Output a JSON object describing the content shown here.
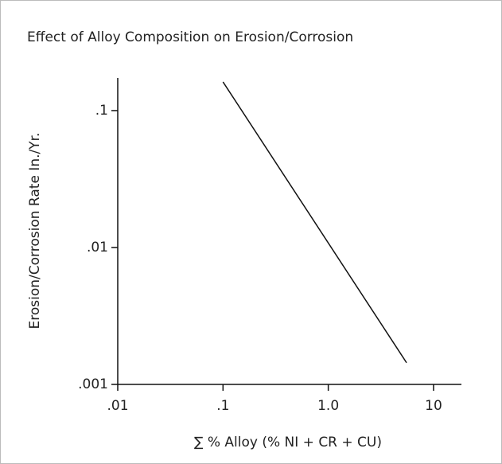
{
  "chart_data": {
    "type": "line",
    "title": "Effect of Alloy Composition on Erosion/Corrosion",
    "x_label": "∑ % Alloy (% NI + CR + CU)",
    "y_label": "Erosion/Corrosion Rate In./Yr.",
    "x_log": true,
    "y_log": true,
    "xlim": [
      0.01,
      18.4
    ],
    "ylim": [
      0.001,
      0.173
    ],
    "xticks": [
      {
        "value": 0.01,
        "label": ".01"
      },
      {
        "value": 0.1,
        "label": ".1"
      },
      {
        "value": 1,
        "label": "1.0"
      },
      10
    ],
    "yticks": [
      {
        "value": 0.001,
        "label": ".001"
      },
      {
        "value": 0.01,
        "label": ".01"
      },
      {
        "value": 0.1,
        "label": ".1"
      }
    ],
    "series": [
      {
        "color": "#111111",
        "x": [
          0.1,
          5.54
        ],
        "values": [
          0.162,
          0.00144
        ]
      }
    ]
  }
}
